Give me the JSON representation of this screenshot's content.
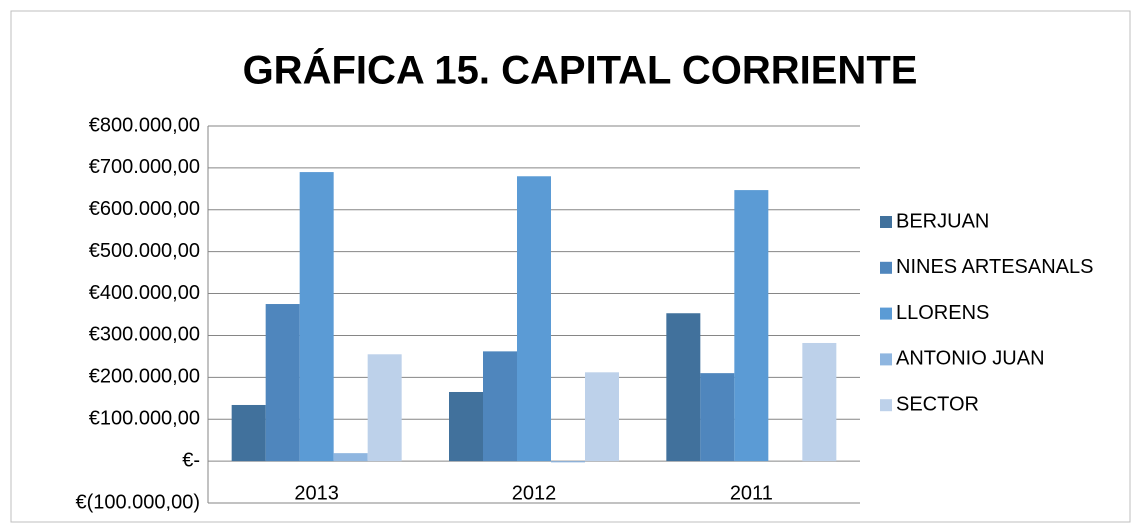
{
  "chart_data": {
    "type": "bar",
    "title": "GRÁFICA 15. CAPITAL CORRIENTE",
    "categories": [
      "2013",
      "2012",
      "2011"
    ],
    "series": [
      {
        "name": "BERJUAN",
        "color": "#41719c",
        "values": [
          134000,
          165000,
          353000
        ]
      },
      {
        "name": "NINES ARTESANALS",
        "color": "#4f86bd",
        "values": [
          375000,
          262000,
          210000
        ]
      },
      {
        "name": "LLORENS",
        "color": "#5b9bd5",
        "values": [
          690000,
          680000,
          647000
        ]
      },
      {
        "name": "ANTONIO JUAN",
        "color": "#8fb6e0",
        "values": [
          19000,
          -3000,
          0
        ]
      },
      {
        "name": "SECTOR",
        "color": "#bdd1ea",
        "values": [
          255000,
          212000,
          282000
        ]
      }
    ],
    "ylim": [
      -100000,
      800000
    ],
    "yticks": [
      {
        "value": -100000,
        "label": "€(100.000,00)"
      },
      {
        "value": 0,
        "label": "€-"
      },
      {
        "value": 100000,
        "label": "€100.000,00"
      },
      {
        "value": 200000,
        "label": "€200.000,00"
      },
      {
        "value": 300000,
        "label": "€300.000,00"
      },
      {
        "value": 400000,
        "label": "€400.000,00"
      },
      {
        "value": 500000,
        "label": "€500.000,00"
      },
      {
        "value": 600000,
        "label": "€600.000,00"
      },
      {
        "value": 700000,
        "label": "€700.000,00"
      },
      {
        "value": 800000,
        "label": "€800.000,00"
      }
    ],
    "grid": true,
    "legend": "right"
  }
}
